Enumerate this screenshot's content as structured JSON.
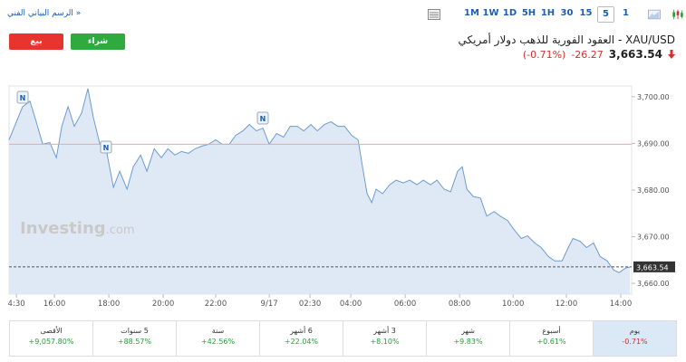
{
  "toolbar": {
    "chart_link": "الرسم البياني الفني »",
    "timeframes": [
      "1M",
      "1W",
      "1D",
      "5H",
      "1H",
      "30",
      "15",
      "5",
      "1"
    ],
    "selected_timeframe": 7
  },
  "trade": {
    "sell": "بيع",
    "buy": "شراء"
  },
  "header": {
    "title": "XAU/USD - العقود الفورية للذهب دولار أمريكي",
    "price": "3,663.54",
    "change": "-26.27",
    "change_percent": "(-0.71%)"
  },
  "chart_data": {
    "type": "area",
    "color": "#6d9bd1",
    "fill": "#dfe9f5",
    "x": [
      14.33,
      14.6,
      14.83,
      15.1,
      15.33,
      15.57,
      15.83,
      16.07,
      16.27,
      16.5,
      16.73,
      17,
      17.23,
      17.43,
      17.67,
      17.93,
      18.17,
      18.4,
      18.67,
      18.9,
      19.17,
      19.4,
      19.67,
      19.93,
      20.17,
      20.43,
      20.67,
      20.93,
      21.17,
      21.43,
      21.67,
      21.93,
      22.17,
      22.43,
      22.67,
      22.93,
      23.17,
      23.43,
      23.67,
      23.9,
      24.17,
      24.43,
      24.67,
      24.93,
      25.17,
      25.43,
      25.67,
      25.93,
      26.17,
      26.43,
      26.67,
      26.93,
      27.17,
      27.33,
      27.5,
      27.67,
      27.83,
      28.07,
      28.33,
      28.57,
      28.83,
      29.07,
      29.33,
      29.57,
      29.83,
      30.07,
      30.33,
      30.57,
      30.83,
      31,
      31.17,
      31.4,
      31.67,
      31.9,
      32.17,
      32.4,
      32.67,
      32.9,
      33.17,
      33.4,
      33.67,
      33.9,
      34.17,
      34.4,
      34.67,
      34.9,
      35.07,
      35.33,
      35.57,
      35.83,
      36.07,
      36.33,
      36.57,
      36.77,
      37,
      37.17
    ],
    "values": [
      3690.77,
      3694.62,
      3697.88,
      3699.04,
      3694.62,
      3689.81,
      3690.19,
      3686.92,
      3693.65,
      3697.88,
      3693.65,
      3696.54,
      3701.73,
      3695.58,
      3689.81,
      3687.88,
      3680.58,
      3684.04,
      3680.19,
      3685.0,
      3687.5,
      3684.04,
      3688.85,
      3686.92,
      3688.85,
      3687.5,
      3688.27,
      3687.88,
      3688.85,
      3689.42,
      3689.81,
      3690.77,
      3689.81,
      3689.81,
      3691.73,
      3692.69,
      3694.04,
      3692.69,
      3693.27,
      3689.81,
      3692.12,
      3691.35,
      3693.65,
      3693.65,
      3692.69,
      3694.04,
      3692.69,
      3694.04,
      3694.62,
      3693.65,
      3693.65,
      3691.73,
      3690.77,
      3685.0,
      3679.23,
      3677.31,
      3680.19,
      3679.23,
      3681.15,
      3682.12,
      3681.54,
      3682.12,
      3681.15,
      3682.12,
      3681.15,
      3682.12,
      3680.19,
      3679.62,
      3684.04,
      3685.0,
      3680.19,
      3678.65,
      3678.27,
      3674.42,
      3675.38,
      3674.42,
      3673.46,
      3671.54,
      3669.62,
      3670.19,
      3668.65,
      3667.69,
      3665.77,
      3664.81,
      3664.81,
      3667.69,
      3669.62,
      3669.04,
      3667.69,
      3668.65,
      3665.77,
      3664.81,
      3662.88,
      3662.31,
      3663.27,
      3663.54
    ],
    "xlim": [
      14.33,
      37.23
    ],
    "ylim": [
      3657.7,
      3702.3
    ],
    "xticks": [
      {
        "value": 14.6,
        "label": "4:30"
      },
      {
        "value": 16,
        "label": "16:00"
      },
      {
        "value": 18,
        "label": "18:00"
      },
      {
        "value": 20,
        "label": "20:00"
      },
      {
        "value": 21.93,
        "label": "22:00"
      },
      {
        "value": 23.9,
        "label": "9/17"
      },
      {
        "value": 25.4,
        "label": "02:30"
      },
      {
        "value": 26.9,
        "label": "04:00"
      },
      {
        "value": 28.9,
        "label": "06:00"
      },
      {
        "value": 30.9,
        "label": "08:00"
      },
      {
        "value": 32.87,
        "label": "10:00"
      },
      {
        "value": 34.83,
        "label": "12:00"
      },
      {
        "value": 36.83,
        "label": "14:00"
      }
    ],
    "yticks": [
      {
        "value": 3700,
        "label": "3,700.00"
      },
      {
        "value": 3690,
        "label": "3,690.00"
      },
      {
        "value": 3680,
        "label": "3,680.00"
      },
      {
        "value": 3670,
        "label": "3,670.00"
      },
      {
        "value": 3660,
        "label": "3,660.00"
      }
    ],
    "reference_line": 3689.81,
    "last": {
      "value": 3663.54,
      "label": "3,663.54"
    },
    "news_markers": [
      "N",
      "N",
      "N"
    ],
    "watermark": [
      "Investing",
      ".com"
    ]
  },
  "performance": {
    "selected": 7,
    "periods": [
      {
        "label": "الأقصى",
        "value": "+9,057.80%"
      },
      {
        "label": "5 سنوات",
        "value": "+88.57%"
      },
      {
        "label": "سنة",
        "value": "+42.56%"
      },
      {
        "label": "6 أشهر",
        "value": "+22.04%"
      },
      {
        "label": "3 أشهر",
        "value": "+8.10%"
      },
      {
        "label": "شهر",
        "value": "+9.83%"
      },
      {
        "label": "أسبوع",
        "value": "+0.61%"
      },
      {
        "label": "يوم",
        "value": "-0.71%"
      }
    ]
  }
}
